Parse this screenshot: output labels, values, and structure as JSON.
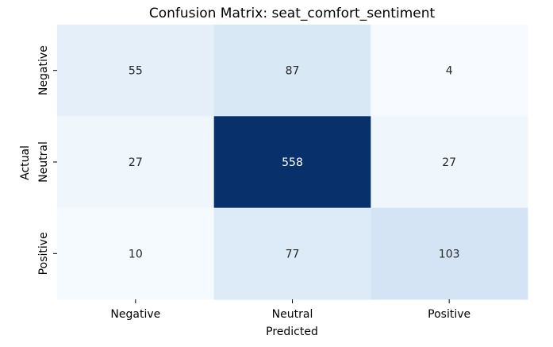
{
  "chart_data": {
    "type": "heatmap",
    "title": "Confusion Matrix: seat_comfort_sentiment",
    "xlabel": "Predicted",
    "ylabel": "Actual",
    "x_categories": [
      "Negative",
      "Neutral",
      "Positive"
    ],
    "y_categories": [
      "Negative",
      "Neutral",
      "Positive"
    ],
    "values": [
      [
        55,
        87,
        4
      ],
      [
        27,
        558,
        27
      ],
      [
        10,
        77,
        103
      ]
    ],
    "colormap": "Blues",
    "colorbar": false,
    "grid": false
  }
}
